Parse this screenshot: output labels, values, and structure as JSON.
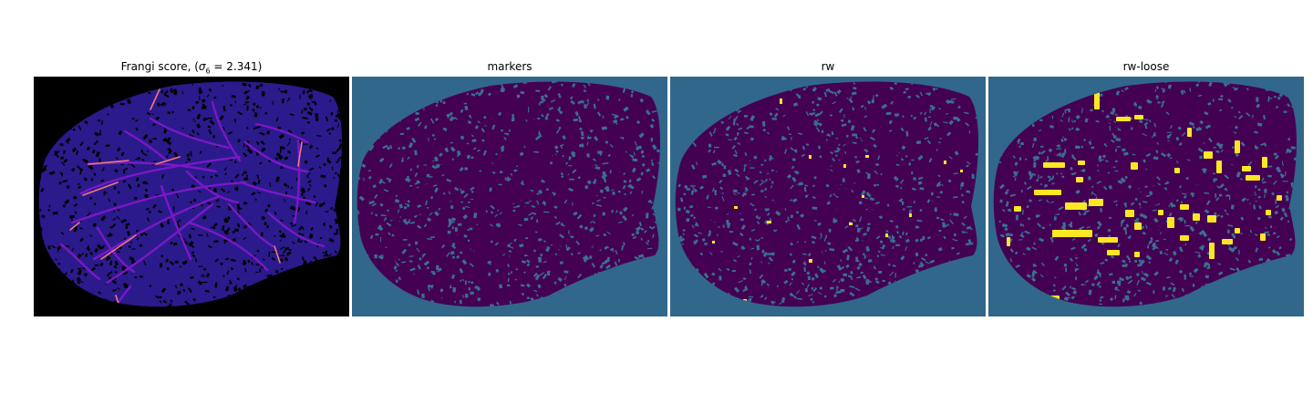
{
  "panels": [
    {
      "title_prefix": "Frangi score, (",
      "title_symbol": "σ",
      "title_subscript": "6",
      "title_suffix": " = 2.341)",
      "background": "#000000",
      "tissue_color": "#2b1a8c",
      "vessel_color": "#7a18c6",
      "highlight_color": "#f07878",
      "colormap": "magma"
    },
    {
      "title": "markers",
      "background": "#31678b",
      "tissue_color": "#440154",
      "vessel_color": "#440154",
      "pore_color": "#3b6f8f",
      "colormap": "viridis"
    },
    {
      "title": "rw",
      "background": "#31678b",
      "tissue_color": "#440154",
      "vessel_color": "#440154",
      "pore_color": "#3b6f8f",
      "highlight_color": "#fde725",
      "colormap": "viridis"
    },
    {
      "title": "rw-loose",
      "background": "#31678b",
      "tissue_color": "#440154",
      "vessel_color": "#440154",
      "pore_color": "#3b6f8f",
      "highlight_color": "#fde725",
      "colormap": "viridis"
    }
  ]
}
